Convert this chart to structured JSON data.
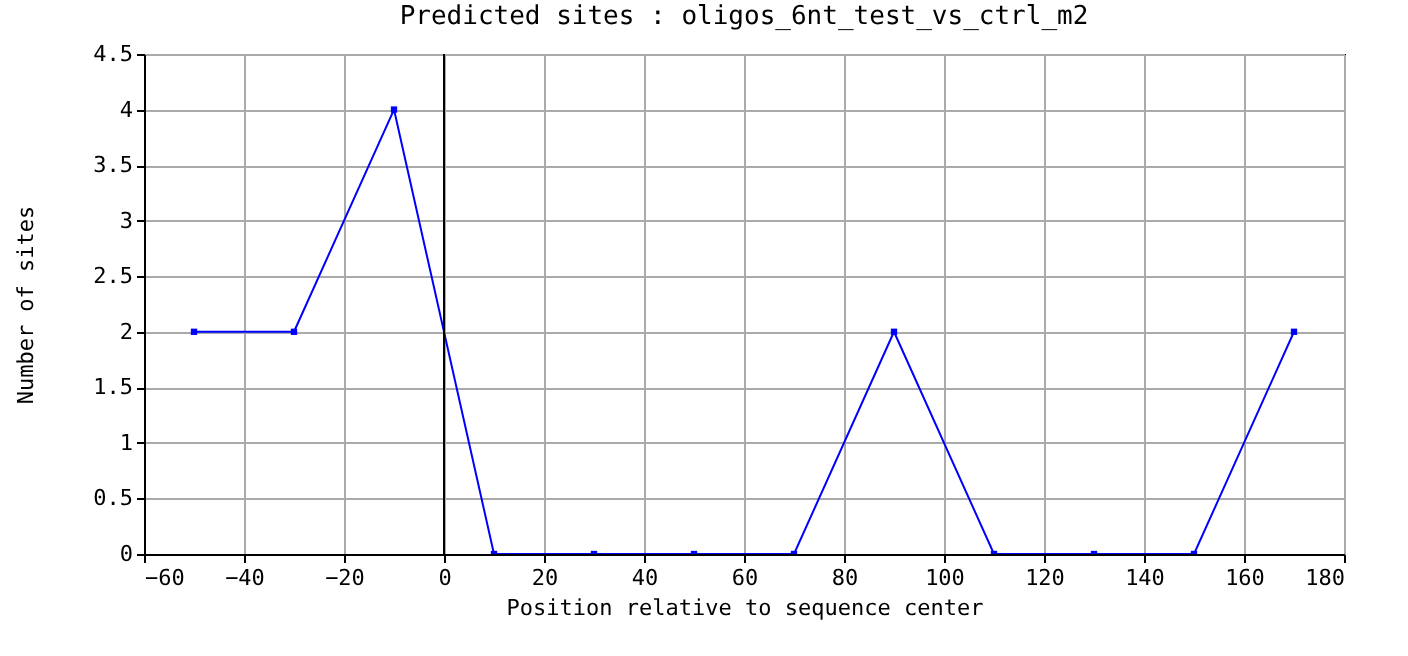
{
  "chart_data": {
    "type": "line",
    "title": "Predicted sites : oligos_6nt_test_vs_ctrl_m2",
    "xlabel": "Position relative to sequence center",
    "ylabel": "Number of sites",
    "x": [
      -50,
      -30,
      -10,
      10,
      30,
      50,
      70,
      90,
      110,
      130,
      150,
      170
    ],
    "series": [
      {
        "color": "#0000ff",
        "values": [
          2,
          2,
          4,
          0,
          0,
          0,
          0,
          2,
          0,
          0,
          0,
          2
        ]
      }
    ],
    "xlim": [
      -60,
      180
    ],
    "xticks": [
      -60,
      -40,
      -20,
      0,
      20,
      40,
      60,
      80,
      100,
      120,
      140,
      160,
      180
    ],
    "ylim": [
      0,
      4.5
    ],
    "yticks": [
      0,
      0.5,
      1,
      1.5,
      2,
      2.5,
      3,
      3.5,
      4,
      4.5
    ],
    "ref_lines": [
      {
        "axis": "x",
        "value": 0,
        "color": "#000000"
      }
    ],
    "grid": true,
    "marker": "square",
    "line_style": "solid"
  }
}
